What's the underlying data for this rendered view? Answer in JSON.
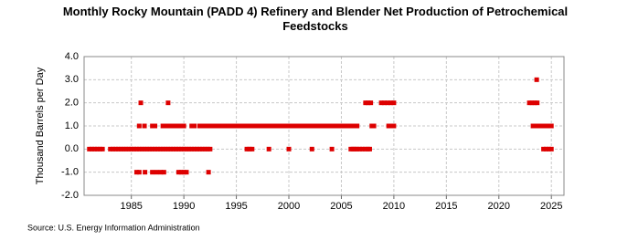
{
  "chart_data": {
    "type": "scatter",
    "title": "Monthly Rocky Mountain (PADD 4) Refinery and Blender Net Production of Petrochemical Feedstocks",
    "y_label": "Thousand Barrels per Day",
    "source": "Source: U.S. Energy Information Administration",
    "xlim": [
      1980.5,
      2026.2
    ],
    "xticks": [
      1985,
      1990,
      1995,
      2000,
      2005,
      2010,
      2015,
      2020,
      2025
    ],
    "ylim": [
      -2,
      4
    ],
    "yticks": [
      {
        "value": -2,
        "label": "-2.0"
      },
      {
        "value": -1,
        "label": "-1.0"
      },
      {
        "value": 0,
        "label": "0.0"
      },
      {
        "value": 1,
        "label": "1.0"
      },
      {
        "value": 2,
        "label": "2.0"
      },
      {
        "value": 3,
        "label": "3.0"
      },
      {
        "value": 4,
        "label": "4.0"
      }
    ],
    "grid": true,
    "series": [
      {
        "color": "#dd0000",
        "x": [
          1981,
          1981.25,
          1981.5,
          1981.75,
          1982,
          1982.25,
          1983,
          1983.25,
          1983.5,
          1983.75,
          1984,
          1984.25,
          1984.5,
          1984.75,
          1985,
          1985.25,
          1985.5,
          1985.75,
          1986,
          1986.25,
          1986.5,
          1986.75,
          1987,
          1987.25,
          1987.5,
          1987.75,
          1988,
          1988.25,
          1988.5,
          1988.75,
          1989,
          1989.25,
          1989.5,
          1989.75,
          1990,
          1990.25,
          1990.5,
          1990.75,
          1991,
          1991.25,
          1991.5,
          1991.75,
          1992,
          1992.25,
          1992.5,
          1996,
          1996.25,
          1996.5,
          1998.1,
          2000,
          2002.2,
          2004.1,
          2005.9,
          2006.1,
          2006.3,
          2006.5,
          2006.75,
          2007,
          2007.25,
          2007.5,
          2007.7,
          2024.25,
          2024.5,
          2024.75,
          2025
        ],
        "values": [
          0,
          0,
          0,
          0,
          0,
          0,
          0,
          0,
          0,
          0,
          0,
          0,
          0,
          0,
          0,
          0,
          0,
          0,
          0,
          0,
          0,
          0,
          0,
          0,
          0,
          0,
          0,
          0,
          0,
          0,
          0,
          0,
          0,
          0,
          0,
          0,
          0,
          0,
          0,
          0,
          0,
          0,
          0,
          0,
          0,
          0,
          0,
          0,
          0,
          0,
          0,
          0,
          0,
          0,
          0,
          0,
          0,
          0,
          0,
          0,
          0,
          0,
          0,
          0,
          0
        ]
      },
      {
        "color": "#dd0000",
        "x": [
          1985.75,
          1986.25,
          1987,
          1987.25,
          1988,
          1988.25,
          1988.5,
          1988.75,
          1989,
          1989.25,
          1989.5,
          1989.75,
          1990,
          1990.75,
          1991,
          1991.5,
          1991.75,
          1992,
          1992.25,
          1992.5,
          1992.75,
          1993,
          1993.25,
          1993.5,
          1993.75,
          1994,
          1994.25,
          1994.5,
          1994.75,
          1995,
          1995.25,
          1995.5,
          1995.75,
          1996,
          1996.25,
          1996.5,
          1996.75,
          1997,
          1997.25,
          1997.5,
          1997.75,
          1998,
          1998.25,
          1998.5,
          1998.75,
          1999,
          1999.25,
          1999.5,
          1999.75,
          2000,
          2000.25,
          2000.5,
          2000.75,
          2001,
          2001.25,
          2001.5,
          2001.75,
          2002,
          2002.25,
          2002.5,
          2002.75,
          2003,
          2003.25,
          2003.5,
          2003.75,
          2004,
          2004.25,
          2004.5,
          2004.75,
          2005,
          2005.25,
          2005.5,
          2005.75,
          2006,
          2006.25,
          2006.5,
          2007.9,
          2008.1,
          2009.5,
          2009.75,
          2010,
          2023.25,
          2023.5,
          2023.75,
          2024,
          2024.25,
          2024.5,
          2024.75,
          2025
        ],
        "values": [
          1,
          1,
          1,
          1,
          1,
          1,
          1,
          1,
          1,
          1,
          1,
          1,
          1,
          1,
          1,
          1,
          1,
          1,
          1,
          1,
          1,
          1,
          1,
          1,
          1,
          1,
          1,
          1,
          1,
          1,
          1,
          1,
          1,
          1,
          1,
          1,
          1,
          1,
          1,
          1,
          1,
          1,
          1,
          1,
          1,
          1,
          1,
          1,
          1,
          1,
          1,
          1,
          1,
          1,
          1,
          1,
          1,
          1,
          1,
          1,
          1,
          1,
          1,
          1,
          1,
          1,
          1,
          1,
          1,
          1,
          1,
          1,
          1,
          1,
          1,
          1,
          1,
          1,
          1,
          1,
          1,
          1,
          1,
          1,
          1,
          1,
          1,
          1,
          1
        ]
      },
      {
        "color": "#dd0000",
        "x": [
          1985.5,
          1985.75,
          1986.3,
          1987,
          1987.4,
          1987.8,
          1988.1,
          1989.5,
          1989.75,
          1990,
          1990.25,
          1992.35
        ],
        "values": [
          -1,
          -1,
          -1,
          -1,
          -1,
          -1,
          -1,
          -1,
          -1,
          -1,
          -1,
          -1
        ]
      },
      {
        "color": "#dd0000",
        "x": [
          1985.9,
          1988.5,
          2007.3,
          2007.55,
          2007.8,
          2008.8,
          2009.1,
          2009.4,
          2009.7,
          2010,
          2022.9,
          2023.15,
          2023.4,
          2023.65
        ],
        "values": [
          2,
          2,
          2,
          2,
          2,
          2,
          2,
          2,
          2,
          2,
          2,
          2,
          2,
          2
        ]
      },
      {
        "color": "#dd0000",
        "x": [
          2023.6
        ],
        "values": [
          3
        ]
      }
    ]
  }
}
